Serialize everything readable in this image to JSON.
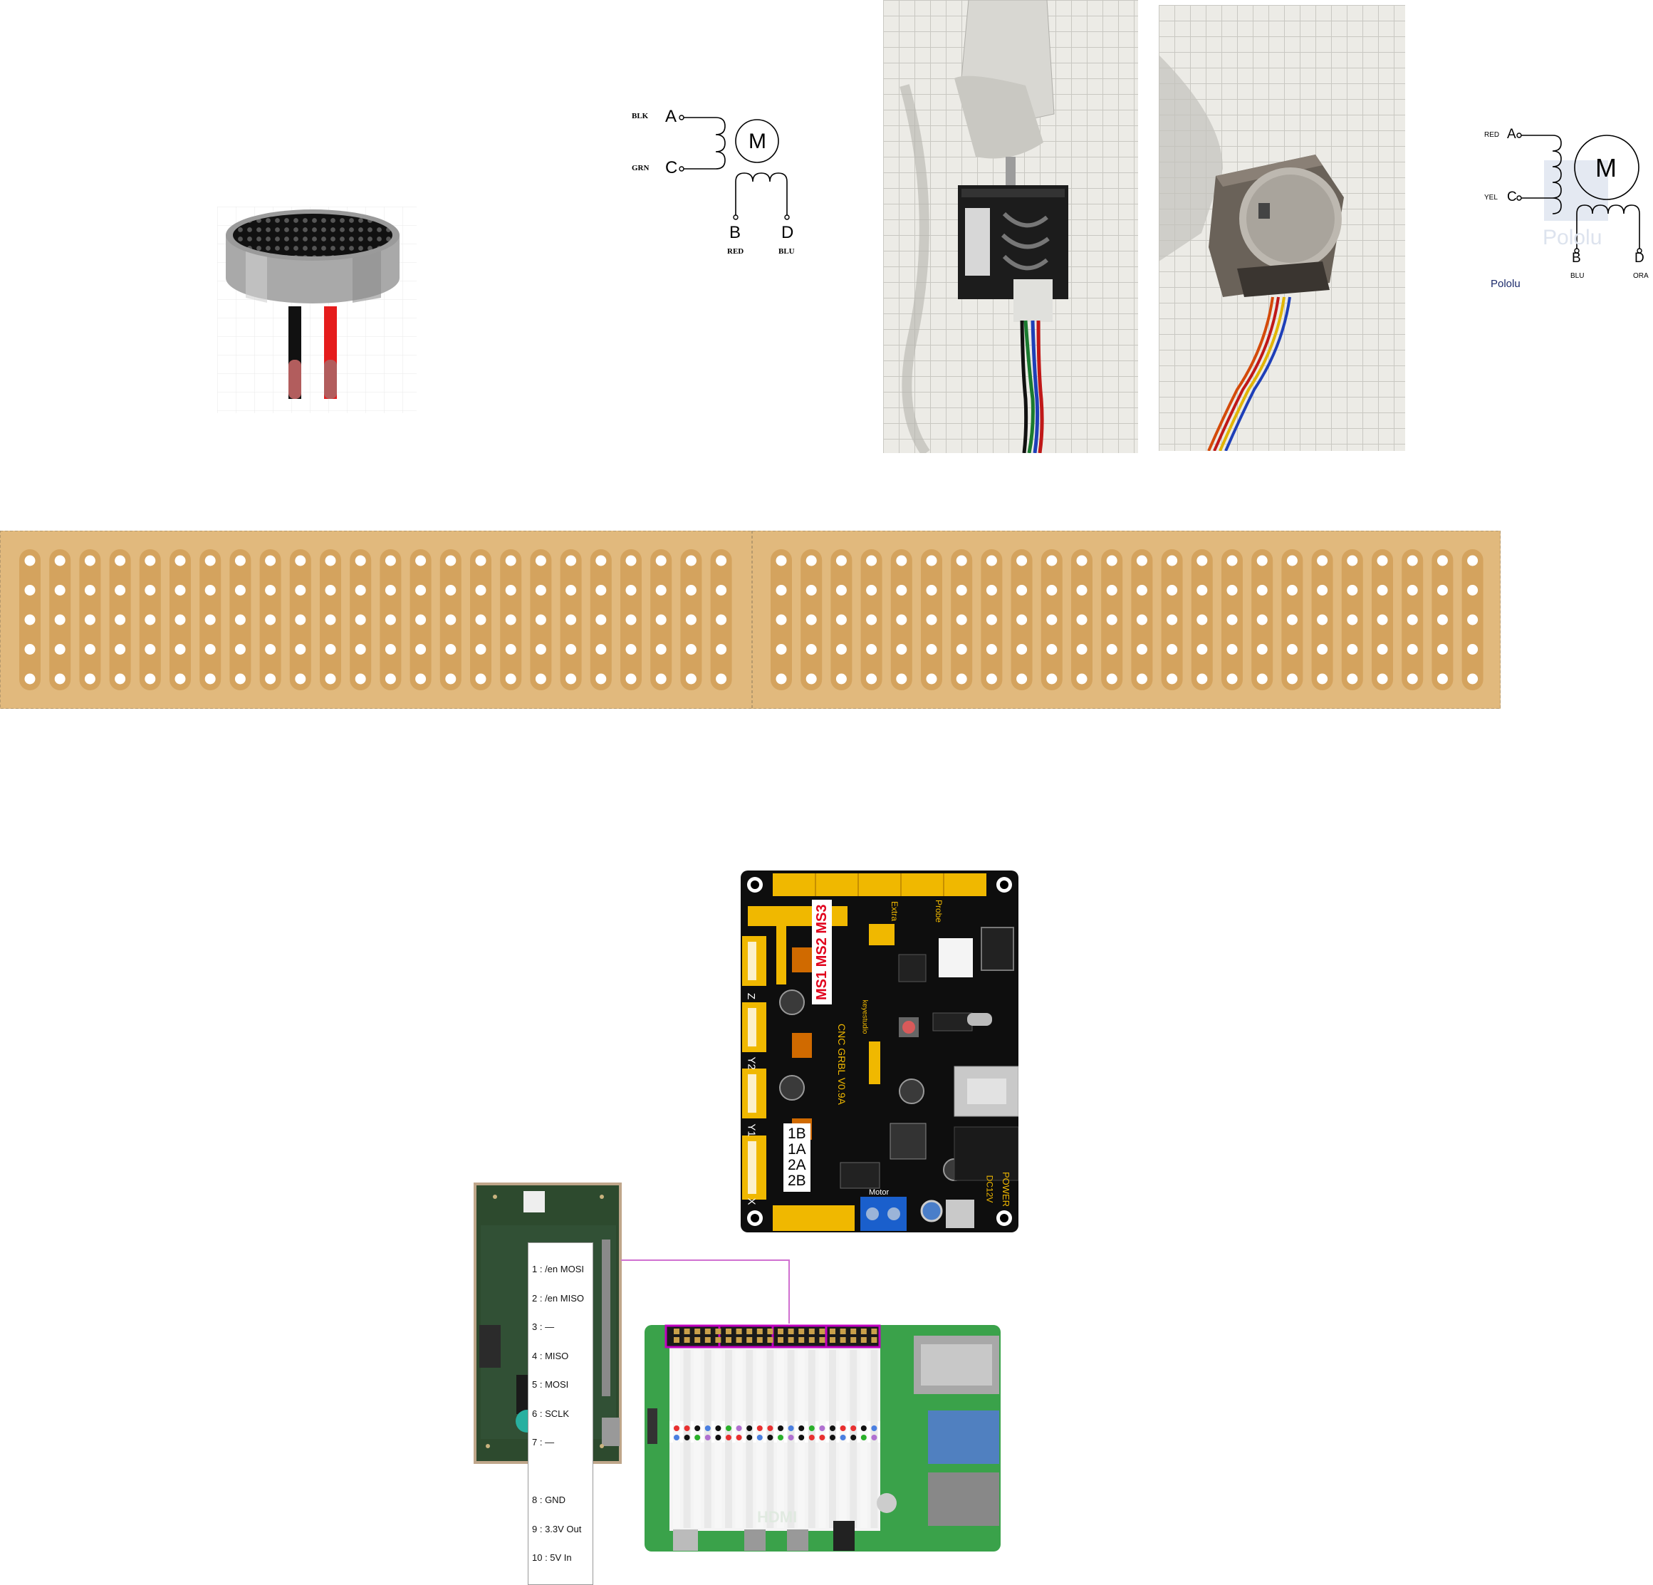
{
  "motor_left": {
    "terminals": [
      "A",
      "C",
      "B",
      "D"
    ],
    "wires": [
      "BLK",
      "GRN",
      "RED",
      "BLU"
    ],
    "motor_label": "M"
  },
  "motor_right": {
    "terminals": [
      "A",
      "C",
      "B",
      "D"
    ],
    "wires": [
      "RED",
      "YEL",
      "BLU",
      "ORA"
    ],
    "motor_label": "M",
    "brand": "Pololu",
    "watermark": "Pololu"
  },
  "cnc_board": {
    "ms_labels": "MS1 MS2 MS3",
    "coil_labels": [
      "1B",
      "1A",
      "2A",
      "2B"
    ],
    "axis_labels": [
      "Z",
      "Y2",
      "Y1",
      "X"
    ],
    "silk_power": "POWER",
    "silk_dc": "DC12V",
    "silk_motor": "Motor",
    "silk_brand": "keyestudio",
    "silk_model": "CNC GRBL V0.9A",
    "silk_extra": "Extra",
    "silk_probe": "Probe",
    "accent_yellow": "#f0b800",
    "ms_color": "#e0001b"
  },
  "rfid_module": {
    "pins": [
      "1 : /en MOSI",
      "2 : /en MISO",
      "3 : —",
      "4 : MISO",
      "5 : MOSI",
      "6 : SCLK",
      "7 : —",
      "",
      "8 : GND",
      "9 : 3.3V Out",
      "10 : 5V In"
    ]
  },
  "raspberry_pi": {
    "hdmi_label": "HDMI",
    "connector_color": "#c000c0"
  },
  "stripboard": {
    "board_color": "#e1b97d",
    "hole_color": "#ffffff"
  }
}
